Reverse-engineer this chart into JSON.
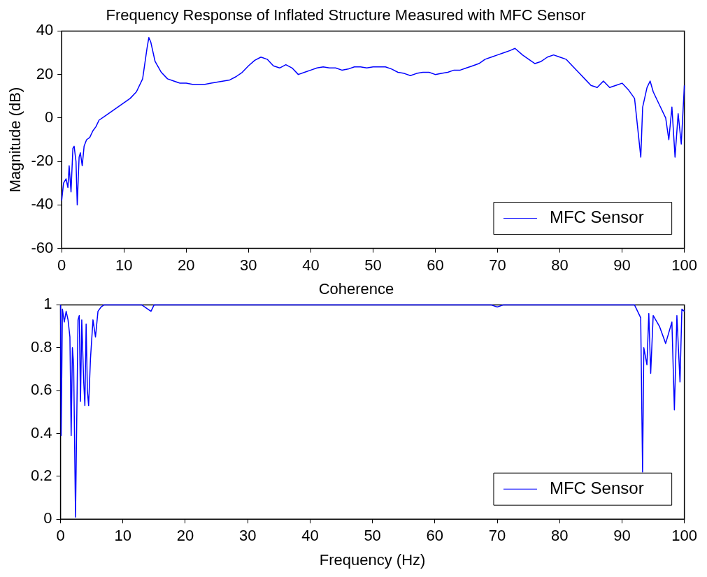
{
  "chart_data": [
    {
      "type": "line",
      "title": "Frequency Response of Inflated Structure Measured with MFC Sensor",
      "ylabel": "Magnitude (dB)",
      "xlim": [
        0,
        100
      ],
      "xticks": [
        0,
        10,
        20,
        30,
        40,
        50,
        60,
        70,
        80,
        90,
        100
      ],
      "ylim": [
        -60,
        40
      ],
      "yticks": [
        -60,
        -40,
        -20,
        0,
        20,
        40
      ],
      "grid": false,
      "legend": "bottom right",
      "x": [
        0,
        0.3,
        0.7,
        1.0,
        1.2,
        1.5,
        1.8,
        2.0,
        2.3,
        2.5,
        2.8,
        3.0,
        3.3,
        3.6,
        4.0,
        4.5,
        5.0,
        5.5,
        6,
        7,
        8,
        9,
        10,
        11,
        12,
        13,
        13.7,
        14,
        14.3,
        15,
        16,
        17,
        18,
        19,
        20,
        21,
        22,
        23,
        24,
        25,
        26,
        27,
        28,
        29,
        30,
        31,
        32,
        33,
        34,
        35,
        36,
        37,
        38,
        39,
        40,
        41,
        42,
        43,
        44,
        45,
        46,
        47,
        48,
        49,
        50,
        51,
        52,
        53,
        54,
        55,
        56,
        57,
        58,
        59,
        60,
        61,
        62,
        63,
        64,
        65,
        66,
        67,
        68,
        69,
        70,
        71,
        72,
        72.8,
        74,
        75,
        76,
        77,
        78,
        79,
        80,
        81,
        82,
        83,
        84,
        85,
        86,
        87,
        88,
        89,
        90,
        91,
        92,
        93,
        93.3,
        94,
        94.5,
        95,
        96,
        97,
        97.5,
        98,
        98.5,
        99,
        99.5,
        100
      ],
      "series": [
        {
          "name": "MFC Sensor",
          "color": "#0000ff",
          "values": [
            -38,
            -30,
            -28,
            -32,
            -22,
            -34,
            -14,
            -13,
            -20,
            -40,
            -18,
            -16,
            -22,
            -13,
            -10,
            -9,
            -6,
            -4,
            -1,
            1,
            3,
            5,
            7,
            9,
            12,
            18,
            32,
            37,
            35,
            26,
            21,
            18,
            17,
            16,
            16,
            15.5,
            15.5,
            15.5,
            16,
            16.5,
            17,
            17.5,
            19,
            21,
            24,
            26.5,
            28,
            27,
            24,
            23,
            24.5,
            23,
            20,
            21,
            22,
            23,
            23.5,
            23,
            23,
            22,
            22.5,
            23.5,
            23.5,
            23,
            23.5,
            23.5,
            23.5,
            22.5,
            21,
            20.5,
            19.5,
            20.5,
            21,
            21,
            20,
            20.5,
            21,
            22,
            22,
            23,
            24,
            25,
            27,
            28,
            29,
            30,
            31,
            32,
            29,
            27,
            25,
            26,
            28,
            29,
            28,
            27,
            24,
            21,
            18,
            15,
            14,
            17,
            14,
            15,
            16,
            13,
            9,
            -18,
            5,
            14,
            17,
            12,
            6,
            0,
            -10,
            5,
            -18,
            2,
            -12,
            15
          ]
        }
      ]
    },
    {
      "type": "line",
      "title": "Coherence",
      "xlabel": "Frequency (Hz)",
      "xlim": [
        0,
        100
      ],
      "xticks": [
        0,
        10,
        20,
        30,
        40,
        50,
        60,
        70,
        80,
        90,
        100
      ],
      "ylim": [
        0,
        1
      ],
      "yticks": [
        0,
        0.2,
        0.4,
        0.6,
        0.8,
        1
      ],
      "grid": false,
      "legend": "bottom right",
      "x": [
        0,
        0.1,
        0.3,
        0.6,
        0.9,
        1.2,
        1.5,
        1.7,
        1.9,
        2.1,
        2.4,
        2.8,
        3.0,
        3.2,
        3.4,
        3.7,
        3.9,
        4.1,
        4.3,
        4.5,
        4.8,
        5.2,
        5.6,
        6,
        6.5,
        7,
        13,
        14,
        14.5,
        15,
        69,
        70,
        71,
        92,
        93,
        93.3,
        93.5,
        94,
        94.3,
        94.6,
        95,
        96,
        97,
        98,
        98.4,
        98.8,
        99.3,
        99.6,
        100
      ],
      "series": [
        {
          "name": "MFC Sensor",
          "color": "#0000ff",
          "values": [
            1,
            0.39,
            0.98,
            0.92,
            0.97,
            0.93,
            0.85,
            0.39,
            0.8,
            0.72,
            0.01,
            0.93,
            0.95,
            0.55,
            0.93,
            0.65,
            0.53,
            0.91,
            0.6,
            0.53,
            0.75,
            0.93,
            0.85,
            0.97,
            0.99,
            1,
            1,
            0.98,
            0.97,
            1,
            1,
            0.99,
            1,
            1,
            0.94,
            0.22,
            0.8,
            0.72,
            0.96,
            0.68,
            0.95,
            0.9,
            0.82,
            0.92,
            0.51,
            0.95,
            0.64,
            0.98,
            0.97
          ]
        }
      ]
    }
  ]
}
